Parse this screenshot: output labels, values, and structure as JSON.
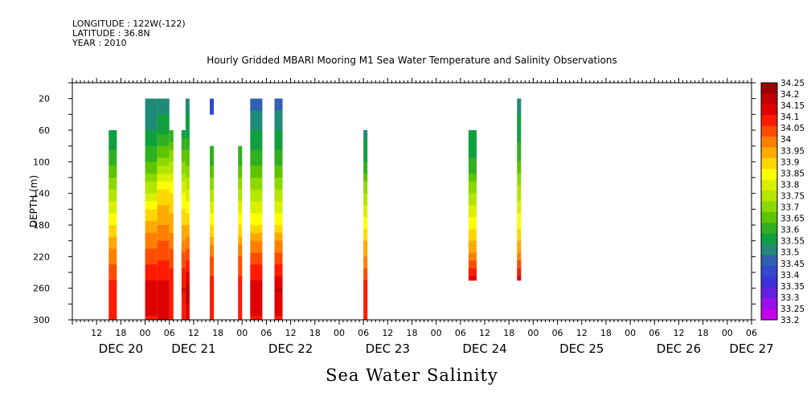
{
  "header": {
    "longitude": "LONGITUDE : 122W(-122)",
    "latitude": "LATITUDE : 36.8N",
    "year": "YEAR : 2010"
  },
  "chart_data": {
    "type": "heatmap",
    "title": "Hourly Gridded MBARI Mooring M1 Sea Water Temperature and Salinity Observations",
    "variable_label": "Sea Water Salinity",
    "ylabel": "DEPTH (m)",
    "y_reversed": true,
    "ylim": [
      0,
      300
    ],
    "yticks": [
      20,
      60,
      100,
      140,
      180,
      220,
      260,
      300
    ],
    "x_unit": "hours since DEC 20 00:00",
    "xlim": [
      6,
      174
    ],
    "xticks": [
      {
        "h": 12,
        "label": "12"
      },
      {
        "h": 18,
        "label": "18"
      },
      {
        "h": 24,
        "label": "00"
      },
      {
        "h": 30,
        "label": "06"
      },
      {
        "h": 36,
        "label": "12"
      },
      {
        "h": 42,
        "label": "18"
      },
      {
        "h": 48,
        "label": "00"
      },
      {
        "h": 54,
        "label": "06"
      },
      {
        "h": 60,
        "label": "12"
      },
      {
        "h": 66,
        "label": "18"
      },
      {
        "h": 72,
        "label": "00"
      },
      {
        "h": 78,
        "label": "06"
      },
      {
        "h": 84,
        "label": "12"
      },
      {
        "h": 90,
        "label": "18"
      },
      {
        "h": 96,
        "label": "00"
      },
      {
        "h": 102,
        "label": "06"
      },
      {
        "h": 108,
        "label": "12"
      },
      {
        "h": 114,
        "label": "18"
      },
      {
        "h": 120,
        "label": "00"
      },
      {
        "h": 126,
        "label": "06"
      },
      {
        "h": 132,
        "label": "12"
      },
      {
        "h": 138,
        "label": "18"
      },
      {
        "h": 144,
        "label": "00"
      },
      {
        "h": 150,
        "label": "06"
      },
      {
        "h": 156,
        "label": "12"
      },
      {
        "h": 162,
        "label": "18"
      },
      {
        "h": 168,
        "label": "00"
      },
      {
        "h": 174,
        "label": "06"
      }
    ],
    "day_labels": [
      {
        "h": 18,
        "label": "DEC 20"
      },
      {
        "h": 36,
        "label": "DEC 21"
      },
      {
        "h": 60,
        "label": "DEC 22"
      },
      {
        "h": 84,
        "label": "DEC 23"
      },
      {
        "h": 108,
        "label": "DEC 24"
      },
      {
        "h": 132,
        "label": "DEC 25"
      },
      {
        "h": 156,
        "label": "DEC 26"
      },
      {
        "h": 174,
        "label": "DEC 27"
      }
    ],
    "colorbar": {
      "labels": [
        "34.25",
        "34.2",
        "34.15",
        "34.1",
        "34.05",
        "34",
        "33.95",
        "33.9",
        "33.85",
        "33.8",
        "33.75",
        "33.7",
        "33.65",
        "33.6",
        "33.55",
        "33.5",
        "33.45",
        "33.4",
        "33.35",
        "33.3",
        "33.25",
        "33.2"
      ],
      "colors": [
        "#9b0000",
        "#c00000",
        "#e00000",
        "#ff1a00",
        "#ff4d00",
        "#ff8000",
        "#ffaa00",
        "#ffd700",
        "#ffff00",
        "#d9f000",
        "#b3e600",
        "#8cd900",
        "#5ec400",
        "#30b020",
        "#10a040",
        "#208a78",
        "#3060b0",
        "#3348cc",
        "#3c30d8",
        "#6620e0",
        "#9910e8",
        "#c800f0"
      ]
    },
    "cells_note": "columns: [start_hour, end_hour, top_depth, bottom_depth, profile]; profile: salinity at depths 20,60,100,140,180,220,260,300",
    "columns": [
      {
        "x0": 15,
        "x1": 17,
        "d0": 60,
        "d1": 300,
        "profile": [
          33.5,
          33.52,
          33.6,
          33.74,
          33.88,
          34.0,
          34.1,
          34.12
        ]
      },
      {
        "x0": 24,
        "x1": 27,
        "d0": 20,
        "d1": 300,
        "profile": [
          33.5,
          33.52,
          33.62,
          33.78,
          33.95,
          34.05,
          34.15,
          34.12
        ]
      },
      {
        "x0": 27,
        "x1": 30,
        "d0": 20,
        "d1": 300,
        "profile": [
          33.5,
          33.55,
          33.7,
          33.9,
          33.98,
          34.06,
          34.14,
          34.13
        ]
      },
      {
        "x0": 30,
        "x1": 31,
        "d0": 60,
        "d1": 300,
        "profile": [
          33.5,
          33.58,
          33.72,
          33.88,
          33.95,
          34.05,
          34.12,
          34.12
        ]
      },
      {
        "x0": 33,
        "x1": 34,
        "d0": 60,
        "d1": 300,
        "profile": [
          33.5,
          33.55,
          33.68,
          33.82,
          33.92,
          34.04,
          34.13,
          34.1
        ]
      },
      {
        "x0": 34,
        "x1": 35,
        "d0": 20,
        "d1": 300,
        "profile": [
          33.5,
          33.55,
          33.66,
          33.8,
          33.92,
          34.05,
          34.2,
          34.15
        ]
      },
      {
        "x0": 40,
        "x1": 41,
        "d0": 20,
        "d1": 40,
        "profile": [
          33.4,
          33.4,
          33.4,
          33.4,
          33.4,
          33.4,
          33.4,
          33.4
        ]
      },
      {
        "x0": 40,
        "x1": 41,
        "d0": 80,
        "d1": 300,
        "profile": [
          33.5,
          33.55,
          33.6,
          33.75,
          33.88,
          34.02,
          34.1,
          34.1
        ]
      },
      {
        "x0": 47,
        "x1": 48,
        "d0": 80,
        "d1": 300,
        "profile": [
          33.5,
          33.55,
          33.6,
          33.75,
          33.88,
          34.02,
          34.1,
          34.1
        ]
      },
      {
        "x0": 50,
        "x1": 53,
        "d0": 20,
        "d1": 300,
        "profile": [
          33.45,
          33.52,
          33.6,
          33.75,
          33.88,
          34.05,
          34.15,
          34.12
        ]
      },
      {
        "x0": 56,
        "x1": 58,
        "d0": 20,
        "d1": 300,
        "profile": [
          33.45,
          33.52,
          33.6,
          33.75,
          33.88,
          34.05,
          34.18,
          34.12
        ]
      },
      {
        "x0": 78,
        "x1": 79,
        "d0": 60,
        "d1": 300,
        "profile": [
          33.5,
          33.5,
          33.58,
          33.72,
          33.86,
          33.98,
          34.1,
          34.1
        ]
      },
      {
        "x0": 104,
        "x1": 106,
        "d0": 60,
        "d1": 250,
        "profile": [
          33.55,
          33.55,
          33.58,
          33.72,
          33.86,
          34.0,
          34.2,
          34.2
        ]
      },
      {
        "x0": 116,
        "x1": 117,
        "d0": 20,
        "d1": 250,
        "profile": [
          33.5,
          33.55,
          33.62,
          33.75,
          33.86,
          34.0,
          34.2,
          34.2
        ]
      }
    ]
  }
}
